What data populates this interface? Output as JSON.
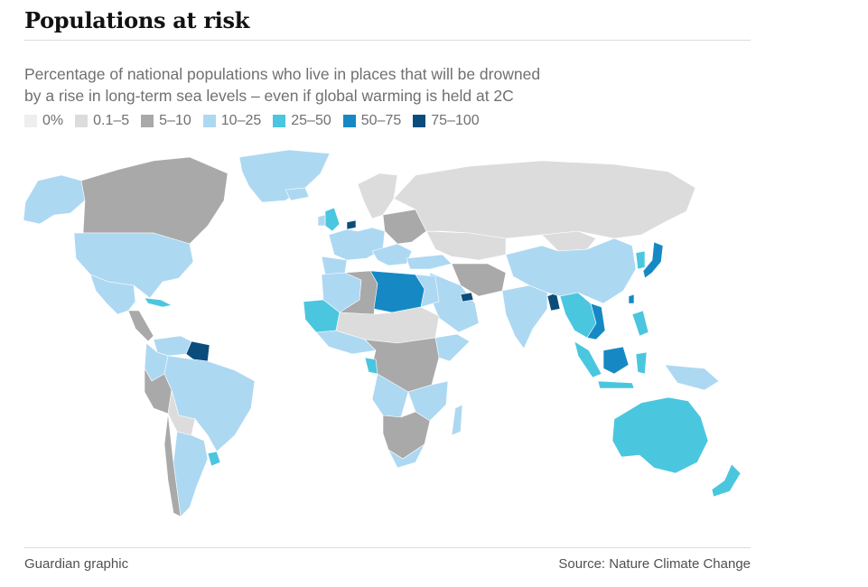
{
  "title": "Populations at risk",
  "subtitle": {
    "line1": "Percentage of national populations who live in places that will be drowned",
    "line2": "by a rise in long-term sea levels – even if global warming is held at 2C"
  },
  "legend": [
    {
      "label": "0%",
      "color": "#eeeeee"
    },
    {
      "label": "0.1–5",
      "color": "#dcdcdc"
    },
    {
      "label": "5–10",
      "color": "#a9a9a9"
    },
    {
      "label": "10–25",
      "color": "#add8f2"
    },
    {
      "label": "25–50",
      "color": "#4bc6df"
    },
    {
      "label": "50–75",
      "color": "#1689c4"
    },
    {
      "label": "75–100",
      "color": "#0a4d7c"
    }
  ],
  "footer": {
    "credit": "Guardian graphic",
    "source": "Source: Nature Climate Change"
  }
}
